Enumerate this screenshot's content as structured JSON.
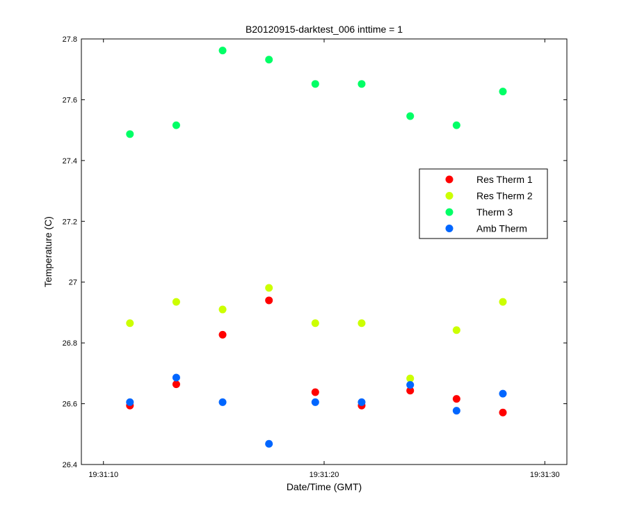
{
  "chart_data": {
    "type": "scatter",
    "title": "B20120915-darktest_006 inttime = 1",
    "xlabel": "Date/Time (GMT)",
    "ylabel": "Temperature (C)",
    "xlim": [
      "19:31:09",
      "19:31:31"
    ],
    "ylim": [
      26.4,
      27.8
    ],
    "x_ticks": [
      "19:31:10",
      "19:31:20",
      "19:31:30"
    ],
    "y_ticks": [
      "26.4",
      "26.6",
      "26.8",
      "27",
      "27.2",
      "27.4",
      "27.6",
      "27.8"
    ],
    "grid": false,
    "legend_position": "right",
    "x": [
      "19:31:11.2",
      "19:31:13.3",
      "19:31:15.4",
      "19:31:17.5",
      "19:31:19.6",
      "19:31:21.7",
      "19:31:23.9",
      "19:31:26.0",
      "19:31:28.1"
    ],
    "series": [
      {
        "name": "Res Therm 1",
        "color": "#ff0000",
        "values": [
          26.594,
          26.664,
          26.827,
          26.94,
          26.638,
          26.594,
          26.643,
          26.616,
          26.571
        ]
      },
      {
        "name": "Res Therm 2",
        "color": "#ccff00",
        "values": [
          26.865,
          26.935,
          26.91,
          26.981,
          26.865,
          26.865,
          26.683,
          26.842,
          26.935
        ]
      },
      {
        "name": "Therm 3",
        "color": "#00ff66",
        "values": [
          27.487,
          27.516,
          27.762,
          27.732,
          27.652,
          27.652,
          27.546,
          27.516,
          27.627
        ]
      },
      {
        "name": "Amb Therm",
        "color": "#0066ff",
        "values": [
          26.605,
          26.686,
          26.605,
          26.468,
          26.605,
          26.605,
          26.662,
          26.577,
          26.633
        ]
      }
    ]
  }
}
